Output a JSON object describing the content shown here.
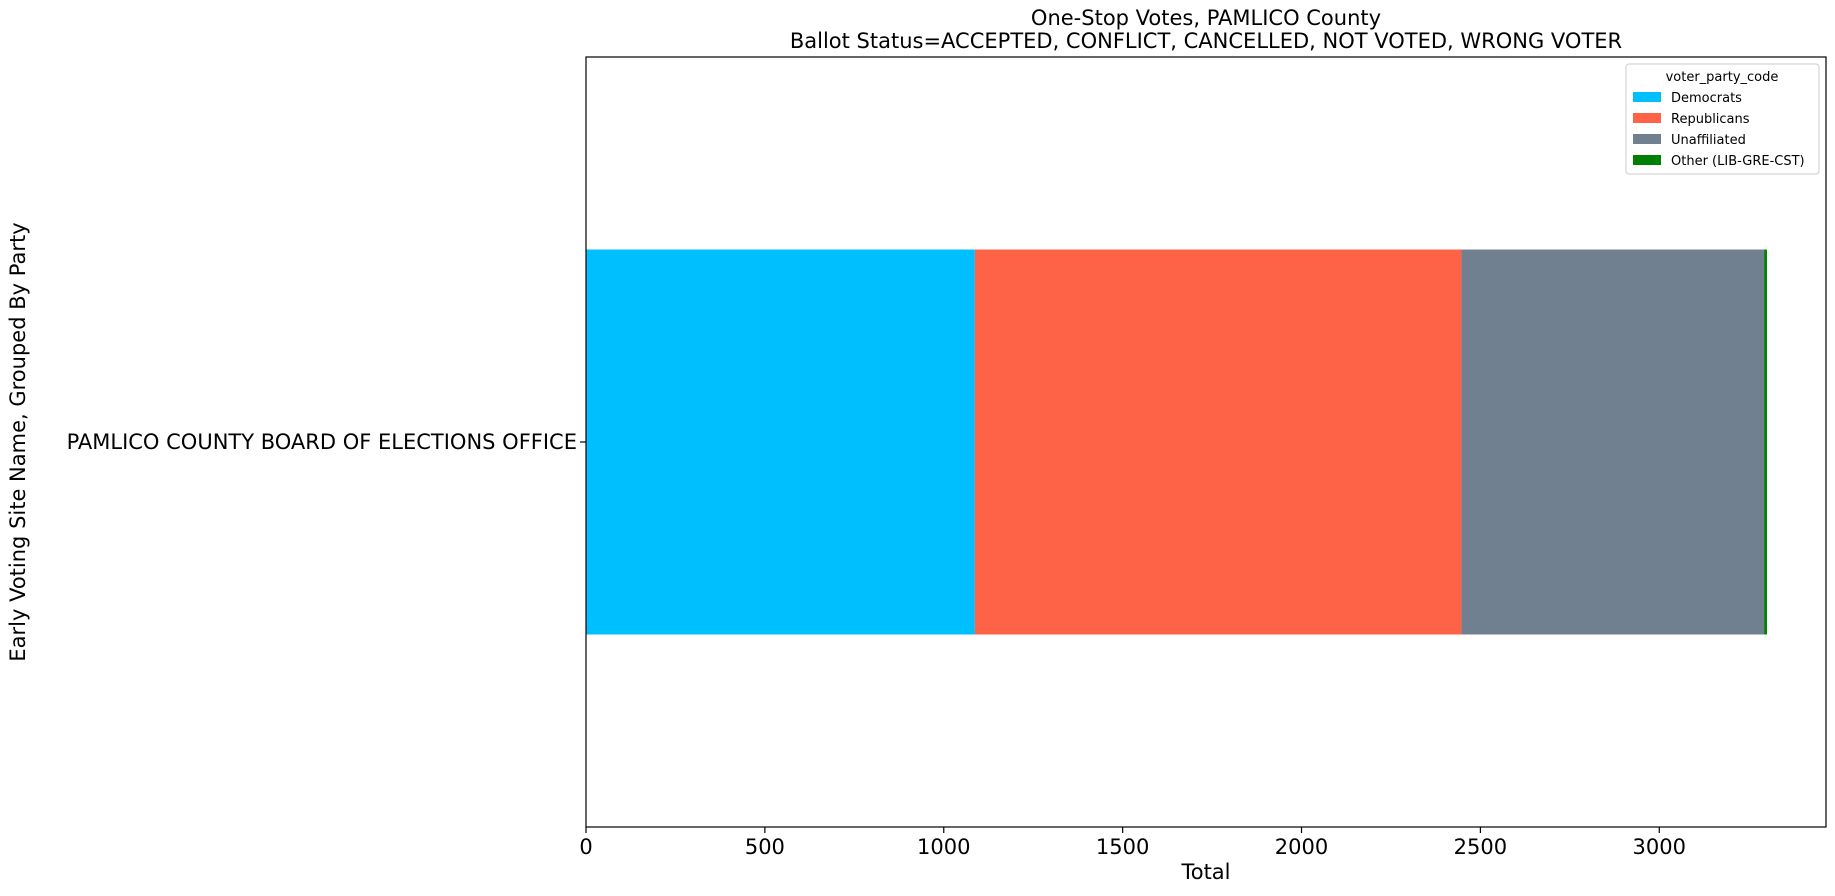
{
  "chart_data": {
    "type": "bar",
    "orientation": "horizontal",
    "stacked": true,
    "title": "One-Stop Votes, PAMLICO County",
    "subtitle": "Ballot Status=ACCEPTED, CONFLICT, CANCELLED, NOT VOTED, WRONG VOTER",
    "xlabel": "Total",
    "ylabel": "Early Voting Site Name, Grouped By Party",
    "categories": [
      "PAMLICO COUNTY BOARD OF ELECTIONS OFFICE"
    ],
    "series": [
      {
        "name": "Democrats",
        "color": "#00BFFF",
        "values": [
          1087
        ]
      },
      {
        "name": "Republicans",
        "color": "#FF6347",
        "values": [
          1360
        ]
      },
      {
        "name": "Unaffiliated",
        "color": "#708090",
        "values": [
          846
        ]
      },
      {
        "name": "Other (LIB-GRE-CST)",
        "color": "#008000",
        "values": [
          8
        ]
      }
    ],
    "xlim": [
      0,
      3466
    ],
    "xticks": [
      0,
      500,
      1000,
      1500,
      2000,
      2500,
      3000
    ],
    "grid": false,
    "legend": {
      "title": "voter_party_code",
      "position": "top-right"
    }
  }
}
